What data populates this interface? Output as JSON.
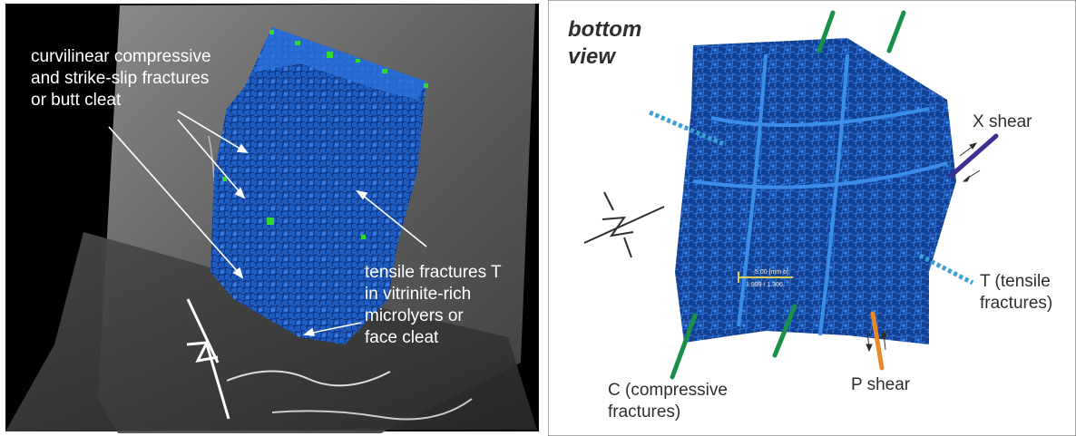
{
  "left_panel": {
    "labels": {
      "curvilinear": [
        "curvilinear compressive",
        "and strike-slip fractures",
        "or butt cleat"
      ],
      "tensile": [
        "tensile fractures T",
        "in vitrinite-rich",
        "microlyers or",
        "face cleat"
      ]
    }
  },
  "right_panel": {
    "title": [
      "bottom",
      "view"
    ],
    "labels": {
      "x_shear": "X shear",
      "t_tensile": [
        "T (tensile",
        "fractures)"
      ],
      "p_shear": "P shear",
      "c_compressive": [
        "C (compressive",
        "fractures)"
      ]
    },
    "scale_bar": [
      "5.00 [mm b]",
      "1.999 / 1.306"
    ]
  },
  "colors": {
    "background_left": "#000000",
    "fracture_blue": "#1f5fc4",
    "marker_green": "#33d933",
    "c_line": "#1a8f4a",
    "t_line": "#3aa0d8",
    "x_line": "#3c2f8f",
    "p_line": "#e88a2a"
  }
}
